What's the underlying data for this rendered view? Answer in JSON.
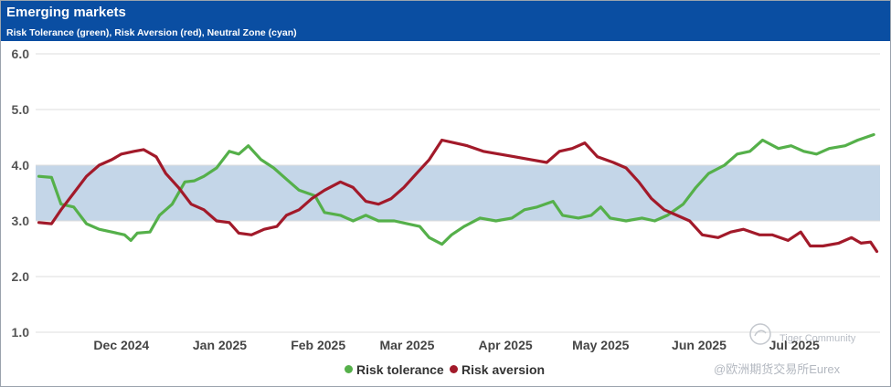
{
  "header": {
    "title": "Emerging markets",
    "subtitle": "Risk Tolerance (green), Risk Aversion (red), Neutral Zone (cyan)"
  },
  "colors": {
    "header_bg": "#0a4ea2",
    "risk_tolerance": "#55b04a",
    "risk_aversion": "#a21a2a",
    "neutral_zone": "#c4d6e8",
    "grid": "#dcdcdc"
  },
  "watermark": {
    "line1": "Tiger Community",
    "line2": "@欧洲期货交易所Eurex"
  },
  "chart_data": {
    "type": "line",
    "ylim": [
      1.0,
      6.0
    ],
    "yticks": [
      "1.0",
      "2.0",
      "3.0",
      "4.0",
      "5.0",
      "6.0"
    ],
    "xlim": [
      "2024-11-04",
      "2025-07-28"
    ],
    "month_ticks": [
      {
        "date": "2024-12-01",
        "label": "Dec 2024"
      },
      {
        "date": "2025-01-01",
        "label": "Jan 2025"
      },
      {
        "date": "2025-02-01",
        "label": "Feb 2025"
      },
      {
        "date": "2025-03-01",
        "label": "Mar 2025"
      },
      {
        "date": "2025-04-01",
        "label": "Apr 2025"
      },
      {
        "date": "2025-05-01",
        "label": "May 2025"
      },
      {
        "date": "2025-06-01",
        "label": "Jun 2025"
      },
      {
        "date": "2025-07-01",
        "label": "Jul 2025"
      }
    ],
    "neutral_zone": [
      3.0,
      4.0
    ],
    "grid": "horizontal",
    "legend_position": "bottom-center",
    "series": [
      {
        "name": "Risk tolerance",
        "color": "#55b04a",
        "points": [
          [
            "2024-11-05",
            3.8
          ],
          [
            "2024-11-09",
            3.78
          ],
          [
            "2024-11-12",
            3.3
          ],
          [
            "2024-11-16",
            3.25
          ],
          [
            "2024-11-20",
            2.95
          ],
          [
            "2024-11-24",
            2.85
          ],
          [
            "2024-11-28",
            2.8
          ],
          [
            "2024-12-02",
            2.75
          ],
          [
            "2024-12-04",
            2.65
          ],
          [
            "2024-12-06",
            2.78
          ],
          [
            "2024-12-10",
            2.8
          ],
          [
            "2024-12-13",
            3.1
          ],
          [
            "2024-12-17",
            3.3
          ],
          [
            "2024-12-21",
            3.7
          ],
          [
            "2024-12-24",
            3.72
          ],
          [
            "2024-12-27",
            3.8
          ],
          [
            "2024-12-31",
            3.95
          ],
          [
            "2025-01-04",
            4.25
          ],
          [
            "2025-01-07",
            4.2
          ],
          [
            "2025-01-10",
            4.35
          ],
          [
            "2025-01-14",
            4.1
          ],
          [
            "2025-01-18",
            3.95
          ],
          [
            "2025-01-22",
            3.75
          ],
          [
            "2025-01-26",
            3.55
          ],
          [
            "2025-01-31",
            3.45
          ],
          [
            "2025-02-03",
            3.15
          ],
          [
            "2025-02-08",
            3.1
          ],
          [
            "2025-02-12",
            3.0
          ],
          [
            "2025-02-16",
            3.1
          ],
          [
            "2025-02-20",
            3.0
          ],
          [
            "2025-02-25",
            3.0
          ],
          [
            "2025-03-01",
            2.95
          ],
          [
            "2025-03-05",
            2.9
          ],
          [
            "2025-03-08",
            2.7
          ],
          [
            "2025-03-12",
            2.58
          ],
          [
            "2025-03-15",
            2.75
          ],
          [
            "2025-03-19",
            2.9
          ],
          [
            "2025-03-24",
            3.05
          ],
          [
            "2025-03-29",
            3.0
          ],
          [
            "2025-04-03",
            3.05
          ],
          [
            "2025-04-07",
            3.2
          ],
          [
            "2025-04-11",
            3.25
          ],
          [
            "2025-04-16",
            3.35
          ],
          [
            "2025-04-19",
            3.1
          ],
          [
            "2025-04-24",
            3.05
          ],
          [
            "2025-04-28",
            3.1
          ],
          [
            "2025-05-01",
            3.25
          ],
          [
            "2025-05-04",
            3.05
          ],
          [
            "2025-05-09",
            3.0
          ],
          [
            "2025-05-14",
            3.05
          ],
          [
            "2025-05-18",
            3.0
          ],
          [
            "2025-05-22",
            3.1
          ],
          [
            "2025-05-27",
            3.3
          ],
          [
            "2025-05-31",
            3.6
          ],
          [
            "2025-06-04",
            3.85
          ],
          [
            "2025-06-09",
            4.0
          ],
          [
            "2025-06-13",
            4.2
          ],
          [
            "2025-06-17",
            4.25
          ],
          [
            "2025-06-21",
            4.45
          ],
          [
            "2025-06-26",
            4.3
          ],
          [
            "2025-06-30",
            4.35
          ],
          [
            "2025-07-04",
            4.25
          ],
          [
            "2025-07-08",
            4.2
          ],
          [
            "2025-07-12",
            4.3
          ],
          [
            "2025-07-17",
            4.35
          ],
          [
            "2025-07-21",
            4.45
          ],
          [
            "2025-07-26",
            4.55
          ]
        ]
      },
      {
        "name": "Risk aversion",
        "color": "#a21a2a",
        "points": [
          [
            "2024-11-05",
            2.97
          ],
          [
            "2024-11-09",
            2.95
          ],
          [
            "2024-11-12",
            3.2
          ],
          [
            "2024-11-16",
            3.5
          ],
          [
            "2024-11-20",
            3.8
          ],
          [
            "2024-11-24",
            4.0
          ],
          [
            "2024-11-28",
            4.1
          ],
          [
            "2024-12-01",
            4.2
          ],
          [
            "2024-12-05",
            4.25
          ],
          [
            "2024-12-08",
            4.28
          ],
          [
            "2024-12-12",
            4.15
          ],
          [
            "2024-12-15",
            3.85
          ],
          [
            "2024-12-19",
            3.6
          ],
          [
            "2024-12-23",
            3.3
          ],
          [
            "2024-12-27",
            3.2
          ],
          [
            "2024-12-31",
            3.0
          ],
          [
            "2025-01-04",
            2.97
          ],
          [
            "2025-01-07",
            2.78
          ],
          [
            "2025-01-11",
            2.75
          ],
          [
            "2025-01-15",
            2.85
          ],
          [
            "2025-01-19",
            2.9
          ],
          [
            "2025-01-22",
            3.1
          ],
          [
            "2025-01-26",
            3.2
          ],
          [
            "2025-01-30",
            3.4
          ],
          [
            "2025-02-03",
            3.55
          ],
          [
            "2025-02-08",
            3.7
          ],
          [
            "2025-02-12",
            3.6
          ],
          [
            "2025-02-16",
            3.35
          ],
          [
            "2025-02-20",
            3.3
          ],
          [
            "2025-02-24",
            3.4
          ],
          [
            "2025-02-28",
            3.6
          ],
          [
            "2025-03-04",
            3.85
          ],
          [
            "2025-03-08",
            4.1
          ],
          [
            "2025-03-12",
            4.45
          ],
          [
            "2025-03-16",
            4.4
          ],
          [
            "2025-03-20",
            4.35
          ],
          [
            "2025-03-25",
            4.25
          ],
          [
            "2025-03-30",
            4.2
          ],
          [
            "2025-04-04",
            4.15
          ],
          [
            "2025-04-09",
            4.1
          ],
          [
            "2025-04-14",
            4.05
          ],
          [
            "2025-04-18",
            4.25
          ],
          [
            "2025-04-22",
            4.3
          ],
          [
            "2025-04-26",
            4.4
          ],
          [
            "2025-04-30",
            4.15
          ],
          [
            "2025-05-05",
            4.05
          ],
          [
            "2025-05-09",
            3.95
          ],
          [
            "2025-05-13",
            3.7
          ],
          [
            "2025-05-17",
            3.4
          ],
          [
            "2025-05-21",
            3.2
          ],
          [
            "2025-05-25",
            3.1
          ],
          [
            "2025-05-29",
            3.0
          ],
          [
            "2025-06-02",
            2.75
          ],
          [
            "2025-06-07",
            2.7
          ],
          [
            "2025-06-11",
            2.8
          ],
          [
            "2025-06-15",
            2.85
          ],
          [
            "2025-06-20",
            2.75
          ],
          [
            "2025-06-24",
            2.75
          ],
          [
            "2025-06-29",
            2.65
          ],
          [
            "2025-07-03",
            2.8
          ],
          [
            "2025-07-06",
            2.55
          ],
          [
            "2025-07-10",
            2.55
          ],
          [
            "2025-07-15",
            2.6
          ],
          [
            "2025-07-19",
            2.7
          ],
          [
            "2025-07-22",
            2.6
          ],
          [
            "2025-07-25",
            2.62
          ],
          [
            "2025-07-27",
            2.45
          ]
        ]
      }
    ]
  }
}
